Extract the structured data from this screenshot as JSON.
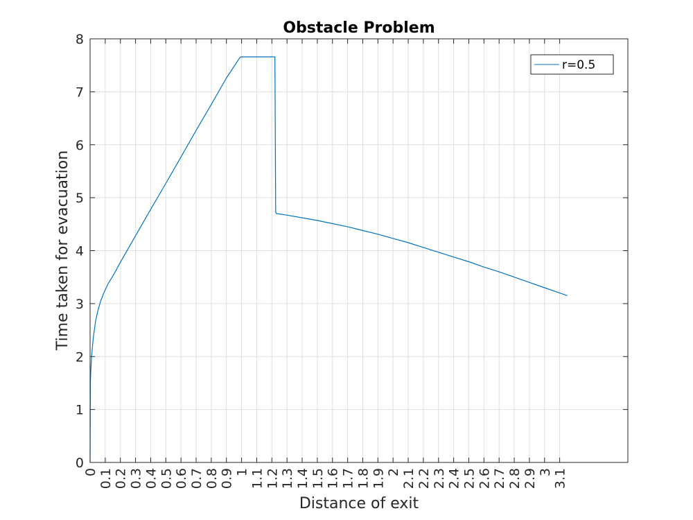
{
  "chart_data": {
    "type": "line",
    "title": "Obstacle Problem",
    "xlabel": "Distance of exit",
    "ylabel": "Time taken for evacuation",
    "xlim": [
      0,
      3.55
    ],
    "ylim": [
      0,
      8
    ],
    "grid": true,
    "legend_position": "top-right",
    "x_ticks": [
      0,
      0.1,
      0.2,
      0.3,
      0.4,
      0.5,
      0.6,
      0.7,
      0.8,
      0.9,
      1,
      1.1,
      1.2,
      1.3,
      1.4,
      1.5,
      1.6,
      1.7,
      1.8,
      1.9,
      2,
      2.1,
      2.2,
      2.3,
      2.4,
      2.5,
      2.6,
      2.7,
      2.8,
      2.9,
      3,
      3.1
    ],
    "x_tick_labels": [
      "0",
      "0.1",
      "0.2",
      "0.3",
      "0.4",
      "0.5",
      "0.6",
      "0.7",
      "0.8",
      "0.9",
      "1",
      "1.1",
      "1.2",
      "1.3",
      "1.4",
      "1.5",
      "1.6",
      "1.7",
      "1.8",
      "1.9",
      "2",
      "2.1",
      "2.2",
      "2.3",
      "2.4",
      "2.5",
      "2.6",
      "2.7",
      "2.8",
      "2.9",
      "3",
      "3.1"
    ],
    "y_ticks": [
      0,
      1,
      2,
      3,
      4,
      5,
      6,
      7,
      8
    ],
    "y_tick_labels": [
      "0",
      "1",
      "2",
      "3",
      "4",
      "5",
      "6",
      "7",
      "8"
    ],
    "series": [
      {
        "name": "r=0.5",
        "color": "#0072BD",
        "x": [
          0,
          0.002,
          0.005,
          0.01,
          0.02,
          0.035,
          0.05,
          0.07,
          0.09,
          0.12,
          0.15,
          0.16,
          0.2,
          0.3,
          0.4,
          0.5,
          0.6,
          0.7,
          0.8,
          0.9,
          0.99,
          1.0,
          1.1,
          1.2,
          1.22,
          1.225,
          1.23,
          1.3,
          1.4,
          1.5,
          1.6,
          1.7,
          1.8,
          1.9,
          2.0,
          2.1,
          2.2,
          2.3,
          2.4,
          2.5,
          2.6,
          2.7,
          2.8,
          2.9,
          3.0,
          3.1,
          3.15
        ],
        "values": [
          0,
          1.5,
          1.75,
          2.0,
          2.33,
          2.65,
          2.85,
          3.05,
          3.2,
          3.38,
          3.52,
          3.57,
          3.78,
          4.28,
          4.78,
          5.27,
          5.77,
          6.27,
          6.76,
          7.26,
          7.65,
          7.66,
          7.66,
          7.66,
          7.66,
          4.72,
          4.7,
          4.67,
          4.62,
          4.57,
          4.51,
          4.45,
          4.38,
          4.31,
          4.23,
          4.15,
          4.06,
          3.97,
          3.88,
          3.79,
          3.69,
          3.6,
          3.5,
          3.4,
          3.3,
          3.2,
          3.15
        ]
      }
    ]
  }
}
